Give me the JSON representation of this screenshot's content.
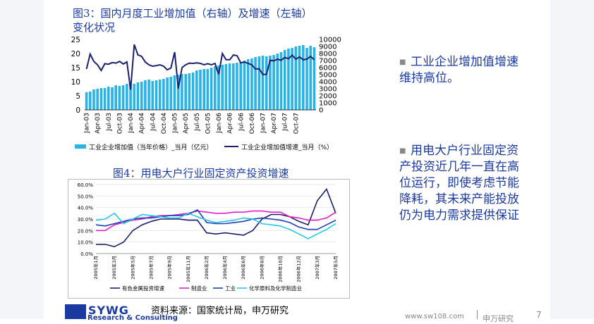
{
  "fig3": {
    "title_line1": "图3：国内月度工业增加值（右轴）及增速（左轴）",
    "title_line2": "变化状况",
    "legend_bar": "工业企业增加值（当年价格）_当月（亿元）",
    "legend_line": "工业企业增加值增速_当月（%）"
  },
  "fig4": {
    "title": "图4：用电大户行业固定资产投资增速",
    "legend": [
      "有色金属投资增速",
      "制造业",
      "工业",
      "化学原料及化学制造业"
    ]
  },
  "bullets": [
    "工业企业增加值增速维持高位。",
    "用电大户行业固定资产投资近几年一直在高位运行，即使考虑节能降耗，其未来产能投放仍为电力需求提供保证"
  ],
  "footer": {
    "logo": "SYWG",
    "logo_sub": "Research & Consulting",
    "source": "资料来源：国家统计局，申万研究",
    "url": "www.sw108.com",
    "name": "申万研究",
    "page": "7"
  },
  "colors": {
    "title": "#1a3aa0",
    "bar": "#29b4e6",
    "line": "#1a1f6e",
    "metal": "#1a1f6e",
    "mfg": "#e020c8",
    "industry": "#2040b0",
    "chem": "#22c8e8"
  },
  "chart_data": [
    {
      "type": "bar+line",
      "title": "图3：国内月度工业增加值（右轴）及增速（左轴）变化状况",
      "x_ticks": [
        "Jan-03",
        "Apr-03",
        "Jul-03",
        "Oct-03",
        "Jan-04",
        "Apr-04",
        "Jul-04",
        "Oct-04",
        "Jan-05",
        "Apr-05",
        "Jul-05",
        "Oct-05",
        "Jan-06",
        "Apr-06",
        "Jul-06",
        "Oct-06",
        "Jan-07",
        "Apr-07",
        "Jul-07",
        "Oct-07"
      ],
      "y_left_ticks": [
        "0",
        "5",
        "10",
        "15",
        "20",
        "25"
      ],
      "y_left_range": [
        0,
        25
      ],
      "y_right_ticks": [
        "0",
        "1000",
        "2000",
        "3000",
        "4000",
        "5000",
        "6000",
        "7000",
        "8000",
        "9000",
        "10000"
      ],
      "y_right_range": [
        0,
        10000
      ],
      "series": [
        {
          "name": "工业企业增加值（当年价格）_当月（亿元）",
          "axis": "right",
          "type": "bar",
          "values": [
            2500,
            2600,
            2900,
            3000,
            3100,
            3100,
            3300,
            3200,
            3500,
            3400,
            3500,
            3700,
            3600,
            3700,
            3900,
            4000,
            4200,
            4300,
            4100,
            4200,
            4300,
            4400,
            4600,
            4700,
            4900,
            5000,
            5100,
            5100,
            5200,
            5300,
            5600,
            5700,
            5800,
            5800,
            6000,
            6200,
            6300,
            6400,
            6500,
            6600,
            6600,
            6700,
            6800,
            7000,
            7200,
            7300,
            7500,
            7600,
            7700,
            7600,
            7700,
            7800,
            8000,
            8200,
            8500,
            8700,
            8800,
            9000,
            9100,
            9200,
            8800,
            9100,
            8900
          ]
        },
        {
          "name": "工业企业增加值增速_当月（%）",
          "axis": "left",
          "type": "line",
          "values": [
            14.5,
            19.8,
            17.2,
            16.0,
            14.0,
            16.4,
            16.2,
            16.8,
            16.6,
            17.2,
            16.3,
            17.0,
            7.2,
            23.2,
            19.5,
            19.0,
            17.0,
            16.0,
            15.5,
            15.7,
            16.0,
            15.5,
            14.2,
            14.9,
            20.5,
            7.6,
            15.0,
            16.0,
            16.6,
            16.5,
            16.7,
            16.5,
            16.0,
            16.4,
            16.0,
            16.5,
            12.6,
            20.0,
            17.8,
            17.8,
            19.5,
            19.2,
            16.7,
            17.0,
            16.5,
            16.0,
            14.5,
            14.6,
            12.6,
            12.6,
            17.6,
            17.4,
            18.0,
            17.6,
            18.6,
            18.2,
            19.4,
            18.0,
            18.8,
            17.8,
            18.0,
            19.0,
            17.8
          ]
        }
      ]
    },
    {
      "type": "line",
      "title": "图4：用电大户行业固定资产投资增速",
      "categories": [
        "2005年1月",
        "2005年2月",
        "2005年3月",
        "2005年4月",
        "2005年5月",
        "2005年6月",
        "2005年7月",
        "2005年8月",
        "2005年9月",
        "2005年10月",
        "2005年11月",
        "2005年12月",
        "2006年2月",
        "2006年3月",
        "2006年4月",
        "2006年5月",
        "2006年6月",
        "2006年7月",
        "2006年8月",
        "2006年9月",
        "2006年10月",
        "2006年11月",
        "2006年12月",
        "2007年2月",
        "2007年3月",
        "2007年4月",
        "2007年5月"
      ],
      "x_tick_labels": [
        "2005年1月",
        "2005年3月",
        "2005年5月",
        "2005年7月",
        "2005年9月",
        "2005年11月",
        "2006年2月",
        "2006年4月",
        "2006年6月",
        "2006年8月",
        "2006年10月",
        "2006年12月",
        "2007年3月",
        "2007年5月"
      ],
      "y_ticks": [
        "0.0%",
        "10.0%",
        "20.0%",
        "30.0%",
        "40.0%",
        "50.0%",
        "60.0%"
      ],
      "ylim": [
        0,
        60
      ],
      "series": [
        {
          "name": "有色金属投资增速",
          "values": [
            8,
            8,
            6,
            10,
            20,
            25,
            28,
            30,
            30,
            30,
            29,
            29,
            18,
            17,
            18,
            17,
            16,
            20,
            30,
            34,
            34,
            32,
            28,
            25,
            46,
            56,
            35
          ]
        },
        {
          "name": "制造业",
          "values": [
            20,
            20,
            25,
            27,
            29,
            30,
            32,
            33,
            33,
            34,
            35,
            37,
            36,
            35,
            35,
            36,
            36,
            37,
            37,
            36,
            36,
            32,
            31,
            29,
            29,
            31,
            36
          ]
        },
        {
          "name": "工业",
          "values": [
            25,
            24,
            26,
            28,
            30,
            31,
            31,
            32,
            33,
            33,
            34,
            38,
            27,
            26,
            26,
            27,
            28,
            30,
            31,
            30,
            29,
            27,
            23,
            21,
            21,
            25,
            29
          ]
        },
        {
          "name": "化学原料及化学制造业",
          "values": [
            29,
            30,
            35,
            26,
            30,
            34,
            33,
            32,
            31,
            31,
            35,
            32,
            29,
            27,
            28,
            29,
            31,
            30,
            26,
            25,
            24,
            21,
            17,
            13,
            17,
            21,
            26
          ]
        }
      ]
    }
  ]
}
